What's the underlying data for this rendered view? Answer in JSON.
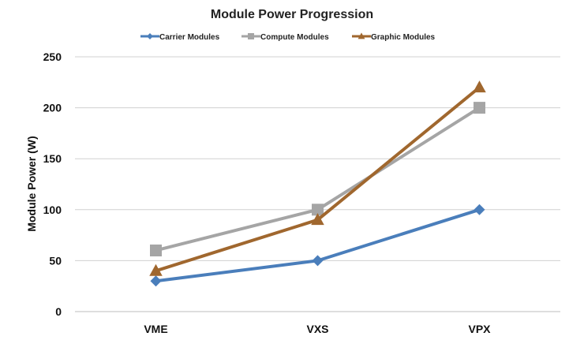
{
  "chart_data": {
    "type": "line",
    "title": "Module Power Progression",
    "xlabel": "",
    "ylabel": "Module Power (W)",
    "categories": [
      "VME",
      "VXS",
      "VPX"
    ],
    "ylim": [
      0,
      250
    ],
    "yticks": [
      0,
      50,
      100,
      150,
      200,
      250
    ],
    "grid": true,
    "legend_position": "top",
    "series": [
      {
        "name": "Carrier Modules",
        "values": [
          30,
          50,
          100
        ],
        "color": "#4A7EBB",
        "marker": "diamond"
      },
      {
        "name": "Compute Modules",
        "values": [
          60,
          100,
          200
        ],
        "color": "#A5A5A5",
        "marker": "square"
      },
      {
        "name": "Graphic Modules",
        "values": [
          40,
          90,
          220
        ],
        "color": "#A0672E",
        "marker": "triangle"
      }
    ]
  }
}
